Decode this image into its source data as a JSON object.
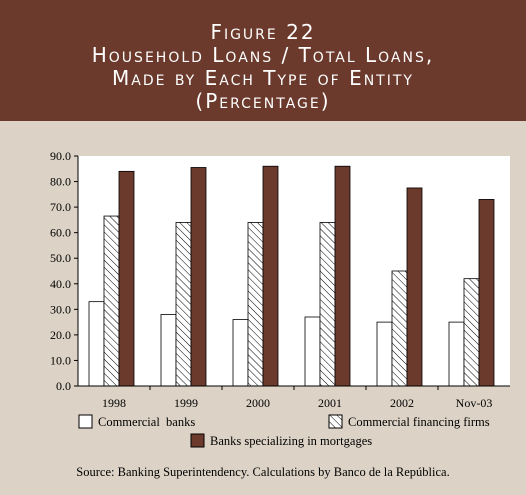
{
  "header": {
    "line1": "Figure 22",
    "line2": "Household Loans / Total Loans,",
    "line3": "Made by Each Type of Entity",
    "line4": "(Percentage)"
  },
  "source": "Source: Banking Superintendency.  Calculations by Banco de la República.",
  "colors": {
    "header_bg": "#6b3a2c",
    "panel_bg": "#dcd3c6",
    "mortgage_bar": "#6b3a2c",
    "bank_bar": "#ffffff"
  },
  "chart_data": {
    "type": "bar",
    "title": "",
    "xlabel": "",
    "ylabel": "",
    "ylim": [
      0,
      90
    ],
    "yticks": [
      "0.0",
      "10.0",
      "20.0",
      "30.0",
      "40.0",
      "50.0",
      "60.0",
      "70.0",
      "80.0",
      "90.0"
    ],
    "categories": [
      "1998",
      "1999",
      "2000",
      "2001",
      "2002",
      "Nov-03"
    ],
    "series": [
      {
        "name": "Commercial  banks",
        "style": "white",
        "values": [
          33,
          28,
          26,
          27,
          25,
          25
        ]
      },
      {
        "name": "Commercial financing firms",
        "style": "hatched",
        "values": [
          66.5,
          64,
          64,
          64,
          45,
          42
        ]
      },
      {
        "name": "Banks specializing in mortgages",
        "style": "dark",
        "values": [
          84,
          85.5,
          86,
          86,
          77.5,
          73
        ]
      }
    ],
    "grid": false,
    "legend": "bottom"
  }
}
